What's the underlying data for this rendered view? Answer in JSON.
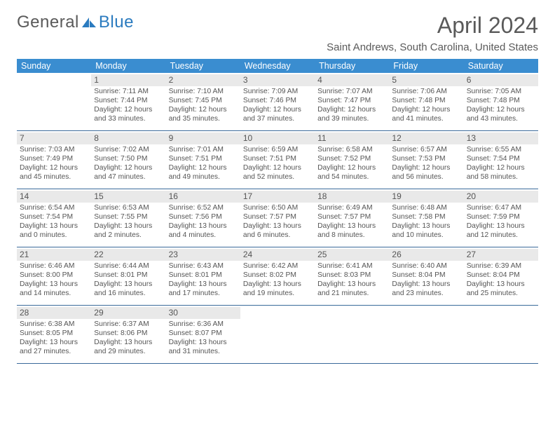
{
  "branding": {
    "word1": "General",
    "word2": "Blue",
    "logo_color": "#2b7bbf",
    "text_color": "#5a5a5a"
  },
  "header": {
    "title": "April 2024",
    "location": "Saint Andrews, South Carolina, United States",
    "title_fontsize": 32,
    "location_fontsize": 15
  },
  "colors": {
    "dow_bg": "#3a8dd0",
    "dow_text": "#ffffff",
    "daynum_bg": "#e9e9e9",
    "week_border": "#3a6a9a",
    "body_text": "#555555",
    "page_bg": "#ffffff"
  },
  "days_of_week": [
    "Sunday",
    "Monday",
    "Tuesday",
    "Wednesday",
    "Thursday",
    "Friday",
    "Saturday"
  ],
  "grid": {
    "first_weekday_index": 1,
    "num_days": 30
  },
  "days": {
    "1": {
      "sunrise": "Sunrise: 7:11 AM",
      "sunset": "Sunset: 7:44 PM",
      "dayl1": "Daylight: 12 hours",
      "dayl2": "and 33 minutes."
    },
    "2": {
      "sunrise": "Sunrise: 7:10 AM",
      "sunset": "Sunset: 7:45 PM",
      "dayl1": "Daylight: 12 hours",
      "dayl2": "and 35 minutes."
    },
    "3": {
      "sunrise": "Sunrise: 7:09 AM",
      "sunset": "Sunset: 7:46 PM",
      "dayl1": "Daylight: 12 hours",
      "dayl2": "and 37 minutes."
    },
    "4": {
      "sunrise": "Sunrise: 7:07 AM",
      "sunset": "Sunset: 7:47 PM",
      "dayl1": "Daylight: 12 hours",
      "dayl2": "and 39 minutes."
    },
    "5": {
      "sunrise": "Sunrise: 7:06 AM",
      "sunset": "Sunset: 7:48 PM",
      "dayl1": "Daylight: 12 hours",
      "dayl2": "and 41 minutes."
    },
    "6": {
      "sunrise": "Sunrise: 7:05 AM",
      "sunset": "Sunset: 7:48 PM",
      "dayl1": "Daylight: 12 hours",
      "dayl2": "and 43 minutes."
    },
    "7": {
      "sunrise": "Sunrise: 7:03 AM",
      "sunset": "Sunset: 7:49 PM",
      "dayl1": "Daylight: 12 hours",
      "dayl2": "and 45 minutes."
    },
    "8": {
      "sunrise": "Sunrise: 7:02 AM",
      "sunset": "Sunset: 7:50 PM",
      "dayl1": "Daylight: 12 hours",
      "dayl2": "and 47 minutes."
    },
    "9": {
      "sunrise": "Sunrise: 7:01 AM",
      "sunset": "Sunset: 7:51 PM",
      "dayl1": "Daylight: 12 hours",
      "dayl2": "and 49 minutes."
    },
    "10": {
      "sunrise": "Sunrise: 6:59 AM",
      "sunset": "Sunset: 7:51 PM",
      "dayl1": "Daylight: 12 hours",
      "dayl2": "and 52 minutes."
    },
    "11": {
      "sunrise": "Sunrise: 6:58 AM",
      "sunset": "Sunset: 7:52 PM",
      "dayl1": "Daylight: 12 hours",
      "dayl2": "and 54 minutes."
    },
    "12": {
      "sunrise": "Sunrise: 6:57 AM",
      "sunset": "Sunset: 7:53 PM",
      "dayl1": "Daylight: 12 hours",
      "dayl2": "and 56 minutes."
    },
    "13": {
      "sunrise": "Sunrise: 6:55 AM",
      "sunset": "Sunset: 7:54 PM",
      "dayl1": "Daylight: 12 hours",
      "dayl2": "and 58 minutes."
    },
    "14": {
      "sunrise": "Sunrise: 6:54 AM",
      "sunset": "Sunset: 7:54 PM",
      "dayl1": "Daylight: 13 hours",
      "dayl2": "and 0 minutes."
    },
    "15": {
      "sunrise": "Sunrise: 6:53 AM",
      "sunset": "Sunset: 7:55 PM",
      "dayl1": "Daylight: 13 hours",
      "dayl2": "and 2 minutes."
    },
    "16": {
      "sunrise": "Sunrise: 6:52 AM",
      "sunset": "Sunset: 7:56 PM",
      "dayl1": "Daylight: 13 hours",
      "dayl2": "and 4 minutes."
    },
    "17": {
      "sunrise": "Sunrise: 6:50 AM",
      "sunset": "Sunset: 7:57 PM",
      "dayl1": "Daylight: 13 hours",
      "dayl2": "and 6 minutes."
    },
    "18": {
      "sunrise": "Sunrise: 6:49 AM",
      "sunset": "Sunset: 7:57 PM",
      "dayl1": "Daylight: 13 hours",
      "dayl2": "and 8 minutes."
    },
    "19": {
      "sunrise": "Sunrise: 6:48 AM",
      "sunset": "Sunset: 7:58 PM",
      "dayl1": "Daylight: 13 hours",
      "dayl2": "and 10 minutes."
    },
    "20": {
      "sunrise": "Sunrise: 6:47 AM",
      "sunset": "Sunset: 7:59 PM",
      "dayl1": "Daylight: 13 hours",
      "dayl2": "and 12 minutes."
    },
    "21": {
      "sunrise": "Sunrise: 6:46 AM",
      "sunset": "Sunset: 8:00 PM",
      "dayl1": "Daylight: 13 hours",
      "dayl2": "and 14 minutes."
    },
    "22": {
      "sunrise": "Sunrise: 6:44 AM",
      "sunset": "Sunset: 8:01 PM",
      "dayl1": "Daylight: 13 hours",
      "dayl2": "and 16 minutes."
    },
    "23": {
      "sunrise": "Sunrise: 6:43 AM",
      "sunset": "Sunset: 8:01 PM",
      "dayl1": "Daylight: 13 hours",
      "dayl2": "and 17 minutes."
    },
    "24": {
      "sunrise": "Sunrise: 6:42 AM",
      "sunset": "Sunset: 8:02 PM",
      "dayl1": "Daylight: 13 hours",
      "dayl2": "and 19 minutes."
    },
    "25": {
      "sunrise": "Sunrise: 6:41 AM",
      "sunset": "Sunset: 8:03 PM",
      "dayl1": "Daylight: 13 hours",
      "dayl2": "and 21 minutes."
    },
    "26": {
      "sunrise": "Sunrise: 6:40 AM",
      "sunset": "Sunset: 8:04 PM",
      "dayl1": "Daylight: 13 hours",
      "dayl2": "and 23 minutes."
    },
    "27": {
      "sunrise": "Sunrise: 6:39 AM",
      "sunset": "Sunset: 8:04 PM",
      "dayl1": "Daylight: 13 hours",
      "dayl2": "and 25 minutes."
    },
    "28": {
      "sunrise": "Sunrise: 6:38 AM",
      "sunset": "Sunset: 8:05 PM",
      "dayl1": "Daylight: 13 hours",
      "dayl2": "and 27 minutes."
    },
    "29": {
      "sunrise": "Sunrise: 6:37 AM",
      "sunset": "Sunset: 8:06 PM",
      "dayl1": "Daylight: 13 hours",
      "dayl2": "and 29 minutes."
    },
    "30": {
      "sunrise": "Sunrise: 6:36 AM",
      "sunset": "Sunset: 8:07 PM",
      "dayl1": "Daylight: 13 hours",
      "dayl2": "and 31 minutes."
    }
  }
}
